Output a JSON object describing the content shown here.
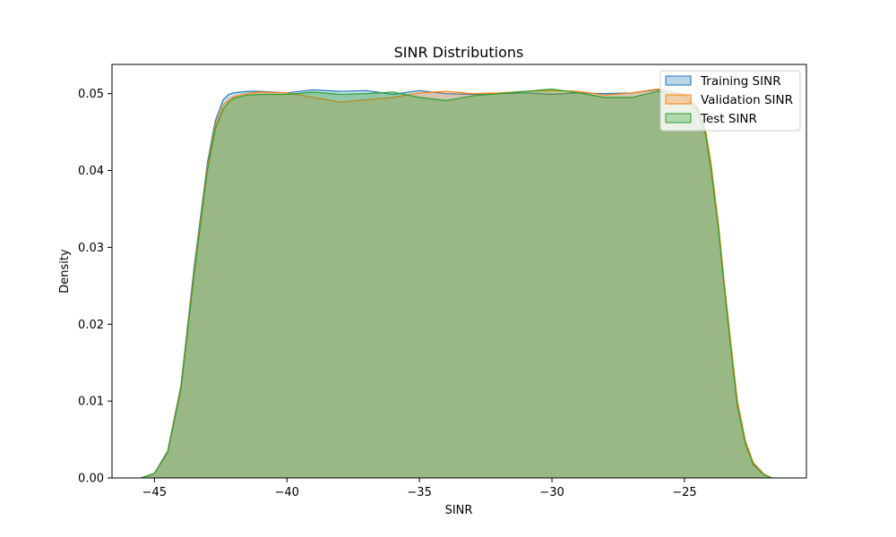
{
  "chart_data": {
    "type": "area",
    "title": "SINR Distributions",
    "xlabel": "SINR",
    "ylabel": "Density",
    "xlim": [
      -46.6,
      -20.4
    ],
    "ylim": [
      0.0,
      0.0538
    ],
    "xticks": [
      -45,
      -40,
      -35,
      -30,
      -25
    ],
    "yticks": [
      0.0,
      0.01,
      0.02,
      0.03,
      0.04,
      0.05
    ],
    "ytick_labels": [
      "0.00",
      "0.01",
      "0.02",
      "0.03",
      "0.04",
      "0.05"
    ],
    "grid": false,
    "legend_position": "top-right",
    "series": [
      {
        "name": "Training SINR",
        "color": "#1f77b4",
        "fill_alpha": 0.25,
        "x": [
          -45.5,
          -45.0,
          -44.5,
          -44.0,
          -43.5,
          -43.0,
          -42.7,
          -42.4,
          -42.2,
          -42.0,
          -41.5,
          -41.0,
          -40.0,
          -39.0,
          -38.0,
          -37.0,
          -36.0,
          -35.0,
          -34.0,
          -33.0,
          -32.0,
          -31.0,
          -30.0,
          -29.0,
          -28.0,
          -27.0,
          -26.0,
          -25.0,
          -24.5,
          -24.2,
          -24.0,
          -23.7,
          -23.5,
          -23.2,
          -23.0,
          -22.7,
          -22.4,
          -22.0,
          -21.7
        ],
        "y": [
          0.0,
          0.0006,
          0.0035,
          0.012,
          0.0275,
          0.041,
          0.0465,
          0.0492,
          0.0499,
          0.0501,
          0.0503,
          0.0503,
          0.0501,
          0.0505,
          0.0503,
          0.0504,
          0.0499,
          0.0504,
          0.05,
          0.0499,
          0.05,
          0.0501,
          0.0499,
          0.0501,
          0.05,
          0.0501,
          0.0505,
          0.0498,
          0.048,
          0.0448,
          0.0405,
          0.032,
          0.025,
          0.0155,
          0.0095,
          0.0045,
          0.0018,
          0.0004,
          0.0
        ]
      },
      {
        "name": "Validation SINR",
        "color": "#ff7f0e",
        "fill_alpha": 0.25,
        "x": [
          -45.5,
          -45.0,
          -44.5,
          -44.0,
          -43.5,
          -43.0,
          -42.7,
          -42.4,
          -42.2,
          -42.0,
          -41.5,
          -41.0,
          -40.0,
          -39.0,
          -38.0,
          -37.0,
          -36.0,
          -35.0,
          -34.0,
          -33.0,
          -32.0,
          -31.0,
          -30.0,
          -29.0,
          -28.0,
          -27.0,
          -26.0,
          -25.0,
          -24.5,
          -24.2,
          -24.0,
          -23.7,
          -23.5,
          -23.2,
          -23.0,
          -22.7,
          -22.4,
          -22.0,
          -21.7
        ],
        "y": [
          0.0,
          0.0006,
          0.0034,
          0.0118,
          0.027,
          0.0405,
          0.046,
          0.0485,
          0.0492,
          0.0496,
          0.05,
          0.0502,
          0.0501,
          0.0495,
          0.0489,
          0.0492,
          0.0495,
          0.0501,
          0.0503,
          0.05,
          0.0501,
          0.0503,
          0.0504,
          0.0503,
          0.0498,
          0.0501,
          0.0506,
          0.05,
          0.0483,
          0.0452,
          0.041,
          0.0325,
          0.0255,
          0.016,
          0.01,
          0.0048,
          0.002,
          0.0005,
          0.0
        ]
      },
      {
        "name": "Test SINR",
        "color": "#2ca02c",
        "fill_alpha": 0.35,
        "x": [
          -45.5,
          -45.0,
          -44.5,
          -44.0,
          -43.5,
          -43.0,
          -42.7,
          -42.4,
          -42.2,
          -42.0,
          -41.5,
          -41.0,
          -40.0,
          -39.0,
          -38.0,
          -37.0,
          -36.0,
          -35.0,
          -34.0,
          -33.0,
          -32.0,
          -31.0,
          -30.0,
          -29.0,
          -28.0,
          -27.0,
          -26.0,
          -25.0,
          -24.5,
          -24.2,
          -24.0,
          -23.7,
          -23.5,
          -23.2,
          -23.0,
          -22.7,
          -22.4,
          -22.0,
          -21.7
        ],
        "y": [
          0.0,
          0.0006,
          0.0033,
          0.0115,
          0.0265,
          0.04,
          0.0455,
          0.048,
          0.0489,
          0.0494,
          0.0498,
          0.0499,
          0.0499,
          0.0502,
          0.0499,
          0.05,
          0.0502,
          0.0495,
          0.0491,
          0.0497,
          0.05,
          0.0503,
          0.0506,
          0.0501,
          0.0495,
          0.0495,
          0.0503,
          0.0496,
          0.0478,
          0.0446,
          0.0402,
          0.0318,
          0.0248,
          0.0152,
          0.0093,
          0.0044,
          0.0017,
          0.0004,
          0.0
        ]
      }
    ]
  }
}
